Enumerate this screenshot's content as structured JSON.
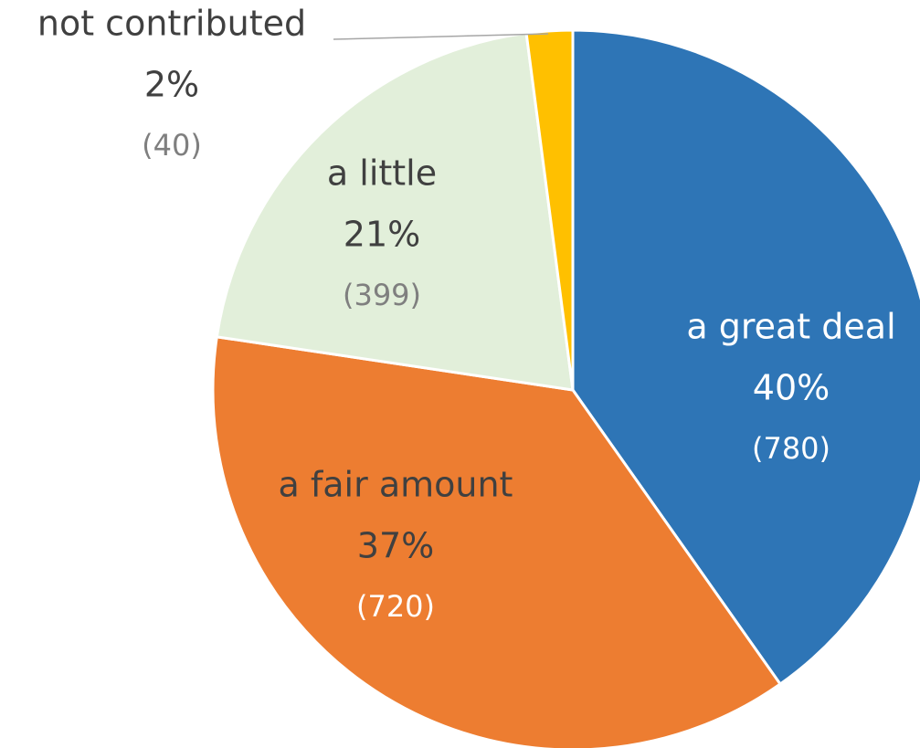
{
  "chart_data": {
    "type": "pie",
    "categories": [
      "a great deal",
      "a fair amount",
      "a little",
      "not contributed"
    ],
    "values": [
      780,
      720,
      399,
      40
    ],
    "value_labels": [
      "(780)",
      "(720)",
      "(399)",
      "(40)"
    ],
    "percent_labels": [
      "40%",
      "37%",
      "21%",
      "2%"
    ],
    "colors": [
      "#2e75b6",
      "#ed7d31",
      "#e2efda",
      "#ffc000"
    ]
  }
}
